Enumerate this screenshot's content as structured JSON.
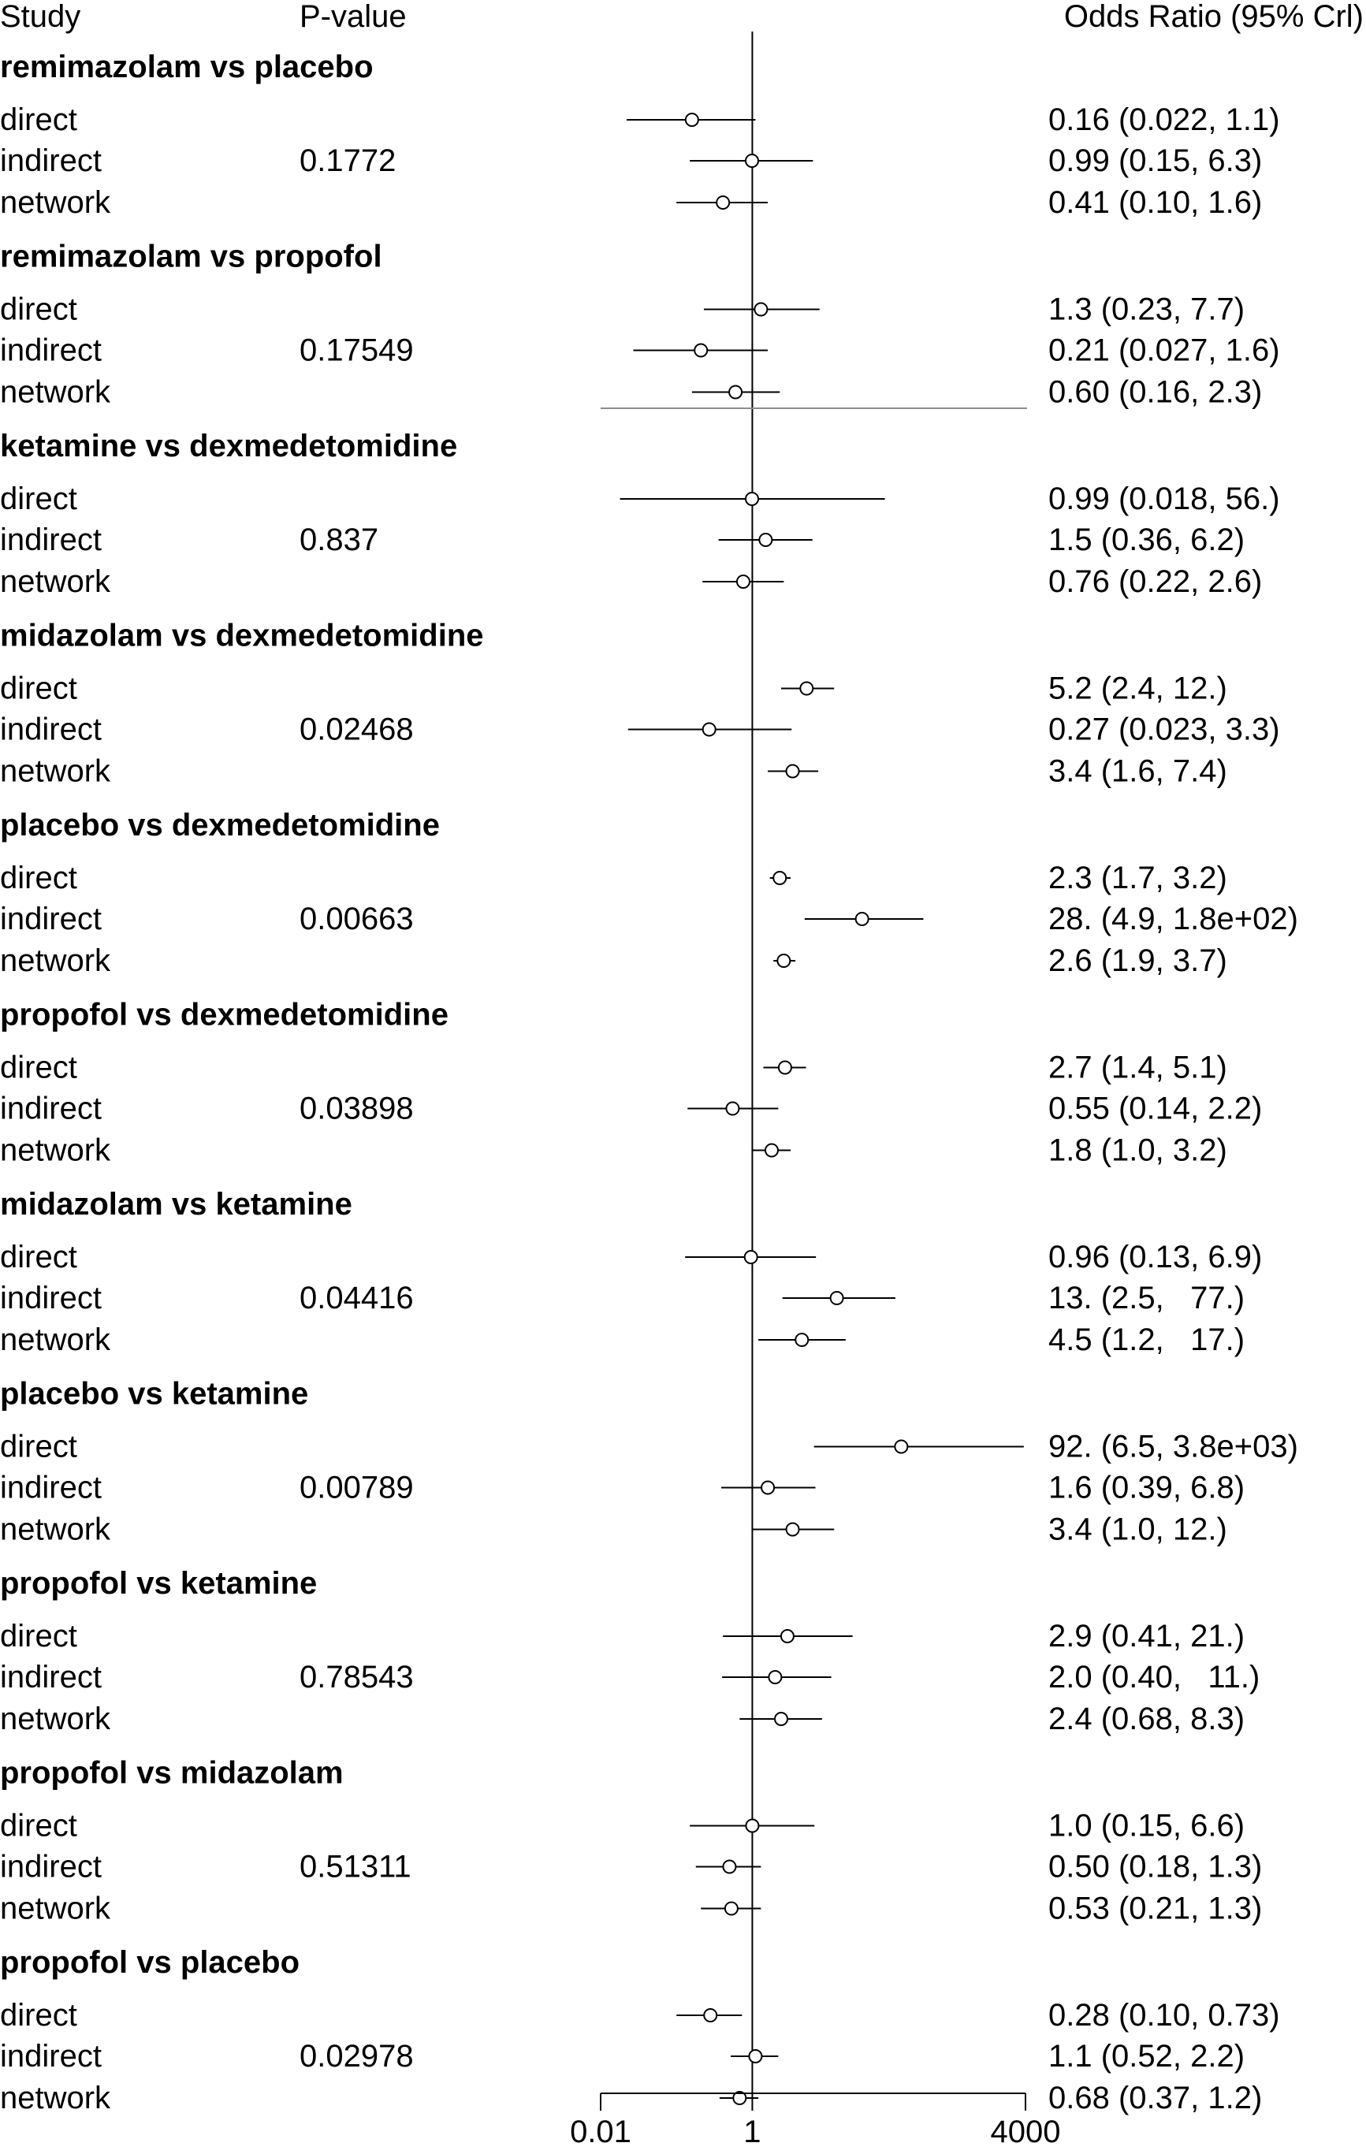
{
  "chart_data": {
    "type": "forest",
    "headers": {
      "study": "Study",
      "pvalue": "P-value",
      "estimate": "Odds Ratio (95% Crl)"
    },
    "x_scale": "log",
    "xlim": [
      0.01,
      4000
    ],
    "ticks": [
      {
        "value": 0.01,
        "label": "0.01"
      },
      {
        "value": 1,
        "label": "1"
      },
      {
        "value": 4000,
        "label": "4000"
      }
    ],
    "reference_value": 1,
    "groups": [
      {
        "title": "remimazolam vs placebo",
        "pvalue": "0.1772",
        "rows": [
          {
            "label": "direct",
            "or": 0.16,
            "lo": 0.022,
            "hi": 1.1,
            "text": "0.16 (0.022, 1.1)"
          },
          {
            "label": "indirect",
            "or": 0.99,
            "lo": 0.15,
            "hi": 6.3,
            "text": "0.99 (0.15, 6.3)"
          },
          {
            "label": "network",
            "or": 0.41,
            "lo": 0.1,
            "hi": 1.6,
            "text": "0.41 (0.10, 1.6)"
          }
        ]
      },
      {
        "title": "remimazolam vs propofol",
        "pvalue": "0.17549",
        "rows": [
          {
            "label": "direct",
            "or": 1.3,
            "lo": 0.23,
            "hi": 7.7,
            "text": "1.3 (0.23, 7.7)"
          },
          {
            "label": "indirect",
            "or": 0.21,
            "lo": 0.027,
            "hi": 1.6,
            "text": "0.21 (0.027, 1.6)"
          },
          {
            "label": "network",
            "or": 0.6,
            "lo": 0.16,
            "hi": 2.3,
            "text": "0.60 (0.16, 2.3)"
          }
        ]
      },
      {
        "title": "ketamine vs dexmedetomidine",
        "pvalue": "0.837",
        "rows": [
          {
            "label": "direct",
            "or": 0.99,
            "lo": 0.018,
            "hi": 56,
            "text": "0.99 (0.018, 56.)"
          },
          {
            "label": "indirect",
            "or": 1.5,
            "lo": 0.36,
            "hi": 6.2,
            "text": "1.5 (0.36, 6.2)"
          },
          {
            "label": "network",
            "or": 0.76,
            "lo": 0.22,
            "hi": 2.6,
            "text": "0.76 (0.22, 2.6)"
          }
        ]
      },
      {
        "title": "midazolam vs dexmedetomidine",
        "pvalue": "0.02468",
        "rows": [
          {
            "label": "direct",
            "or": 5.2,
            "lo": 2.4,
            "hi": 12,
            "text": "5.2 (2.4, 12.)"
          },
          {
            "label": "indirect",
            "or": 0.27,
            "lo": 0.023,
            "hi": 3.3,
            "text": "0.27 (0.023, 3.3)"
          },
          {
            "label": "network",
            "or": 3.4,
            "lo": 1.6,
            "hi": 7.4,
            "text": "3.4 (1.6, 7.4)"
          }
        ]
      },
      {
        "title": "placebo vs dexmedetomidine",
        "pvalue": "0.00663",
        "rows": [
          {
            "label": "direct",
            "or": 2.3,
            "lo": 1.7,
            "hi": 3.2,
            "text": "2.3 (1.7, 3.2)"
          },
          {
            "label": "indirect",
            "or": 28,
            "lo": 4.9,
            "hi": 180,
            "text": "28. (4.9, 1.8e+02)"
          },
          {
            "label": "network",
            "or": 2.6,
            "lo": 1.9,
            "hi": 3.7,
            "text": "2.6 (1.9, 3.7)"
          }
        ]
      },
      {
        "title": "propofol vs dexmedetomidine",
        "pvalue": "0.03898",
        "rows": [
          {
            "label": "direct",
            "or": 2.7,
            "lo": 1.4,
            "hi": 5.1,
            "text": "2.7 (1.4, 5.1)"
          },
          {
            "label": "indirect",
            "or": 0.55,
            "lo": 0.14,
            "hi": 2.2,
            "text": "0.55 (0.14, 2.2)"
          },
          {
            "label": "network",
            "or": 1.8,
            "lo": 1.0,
            "hi": 3.2,
            "text": "1.8 (1.0, 3.2)"
          }
        ]
      },
      {
        "title": "midazolam vs ketamine",
        "pvalue": "0.04416",
        "rows": [
          {
            "label": "direct",
            "or": 0.96,
            "lo": 0.13,
            "hi": 6.9,
            "text": "0.96 (0.13, 6.9)"
          },
          {
            "label": "indirect",
            "or": 13,
            "lo": 2.5,
            "hi": 77,
            "text": "13. (2.5,   77.)"
          },
          {
            "label": "network",
            "or": 4.5,
            "lo": 1.2,
            "hi": 17,
            "text": "4.5 (1.2,   17.)"
          }
        ]
      },
      {
        "title": "placebo vs ketamine",
        "pvalue": "0.00789",
        "rows": [
          {
            "label": "direct",
            "or": 92,
            "lo": 6.5,
            "hi": 3800,
            "text": "92. (6.5, 3.8e+03)"
          },
          {
            "label": "indirect",
            "or": 1.6,
            "lo": 0.39,
            "hi": 6.8,
            "text": "1.6 (0.39, 6.8)"
          },
          {
            "label": "network",
            "or": 3.4,
            "lo": 1.0,
            "hi": 12,
            "text": "3.4 (1.0, 12.)"
          }
        ]
      },
      {
        "title": "propofol vs ketamine",
        "pvalue": "0.78543",
        "rows": [
          {
            "label": "direct",
            "or": 2.9,
            "lo": 0.41,
            "hi": 21,
            "text": "2.9 (0.41, 21.)"
          },
          {
            "label": "indirect",
            "or": 2.0,
            "lo": 0.4,
            "hi": 11,
            "text": "2.0 (0.40,   11.)"
          },
          {
            "label": "network",
            "or": 2.4,
            "lo": 0.68,
            "hi": 8.3,
            "text": "2.4 (0.68, 8.3)"
          }
        ]
      },
      {
        "title": "propofol vs midazolam",
        "pvalue": "0.51311",
        "rows": [
          {
            "label": "direct",
            "or": 1.0,
            "lo": 0.15,
            "hi": 6.6,
            "text": "1.0 (0.15, 6.6)"
          },
          {
            "label": "indirect",
            "or": 0.5,
            "lo": 0.18,
            "hi": 1.3,
            "text": "0.50 (0.18, 1.3)"
          },
          {
            "label": "network",
            "or": 0.53,
            "lo": 0.21,
            "hi": 1.3,
            "text": "0.53 (0.21, 1.3)"
          }
        ]
      },
      {
        "title": "propofol vs placebo",
        "pvalue": "0.02978",
        "rows": [
          {
            "label": "direct",
            "or": 0.28,
            "lo": 0.1,
            "hi": 0.73,
            "text": "0.28 (0.10, 0.73)"
          },
          {
            "label": "indirect",
            "or": 1.1,
            "lo": 0.52,
            "hi": 2.2,
            "text": "1.1 (0.52, 2.2)"
          },
          {
            "label": "network",
            "or": 0.68,
            "lo": 0.37,
            "hi": 1.2,
            "text": "0.68 (0.37, 1.2)"
          }
        ]
      }
    ]
  },
  "colors": {
    "ink": "#000000",
    "stray_line": "#8c8c8c",
    "marker_fill": "#ffffff"
  }
}
